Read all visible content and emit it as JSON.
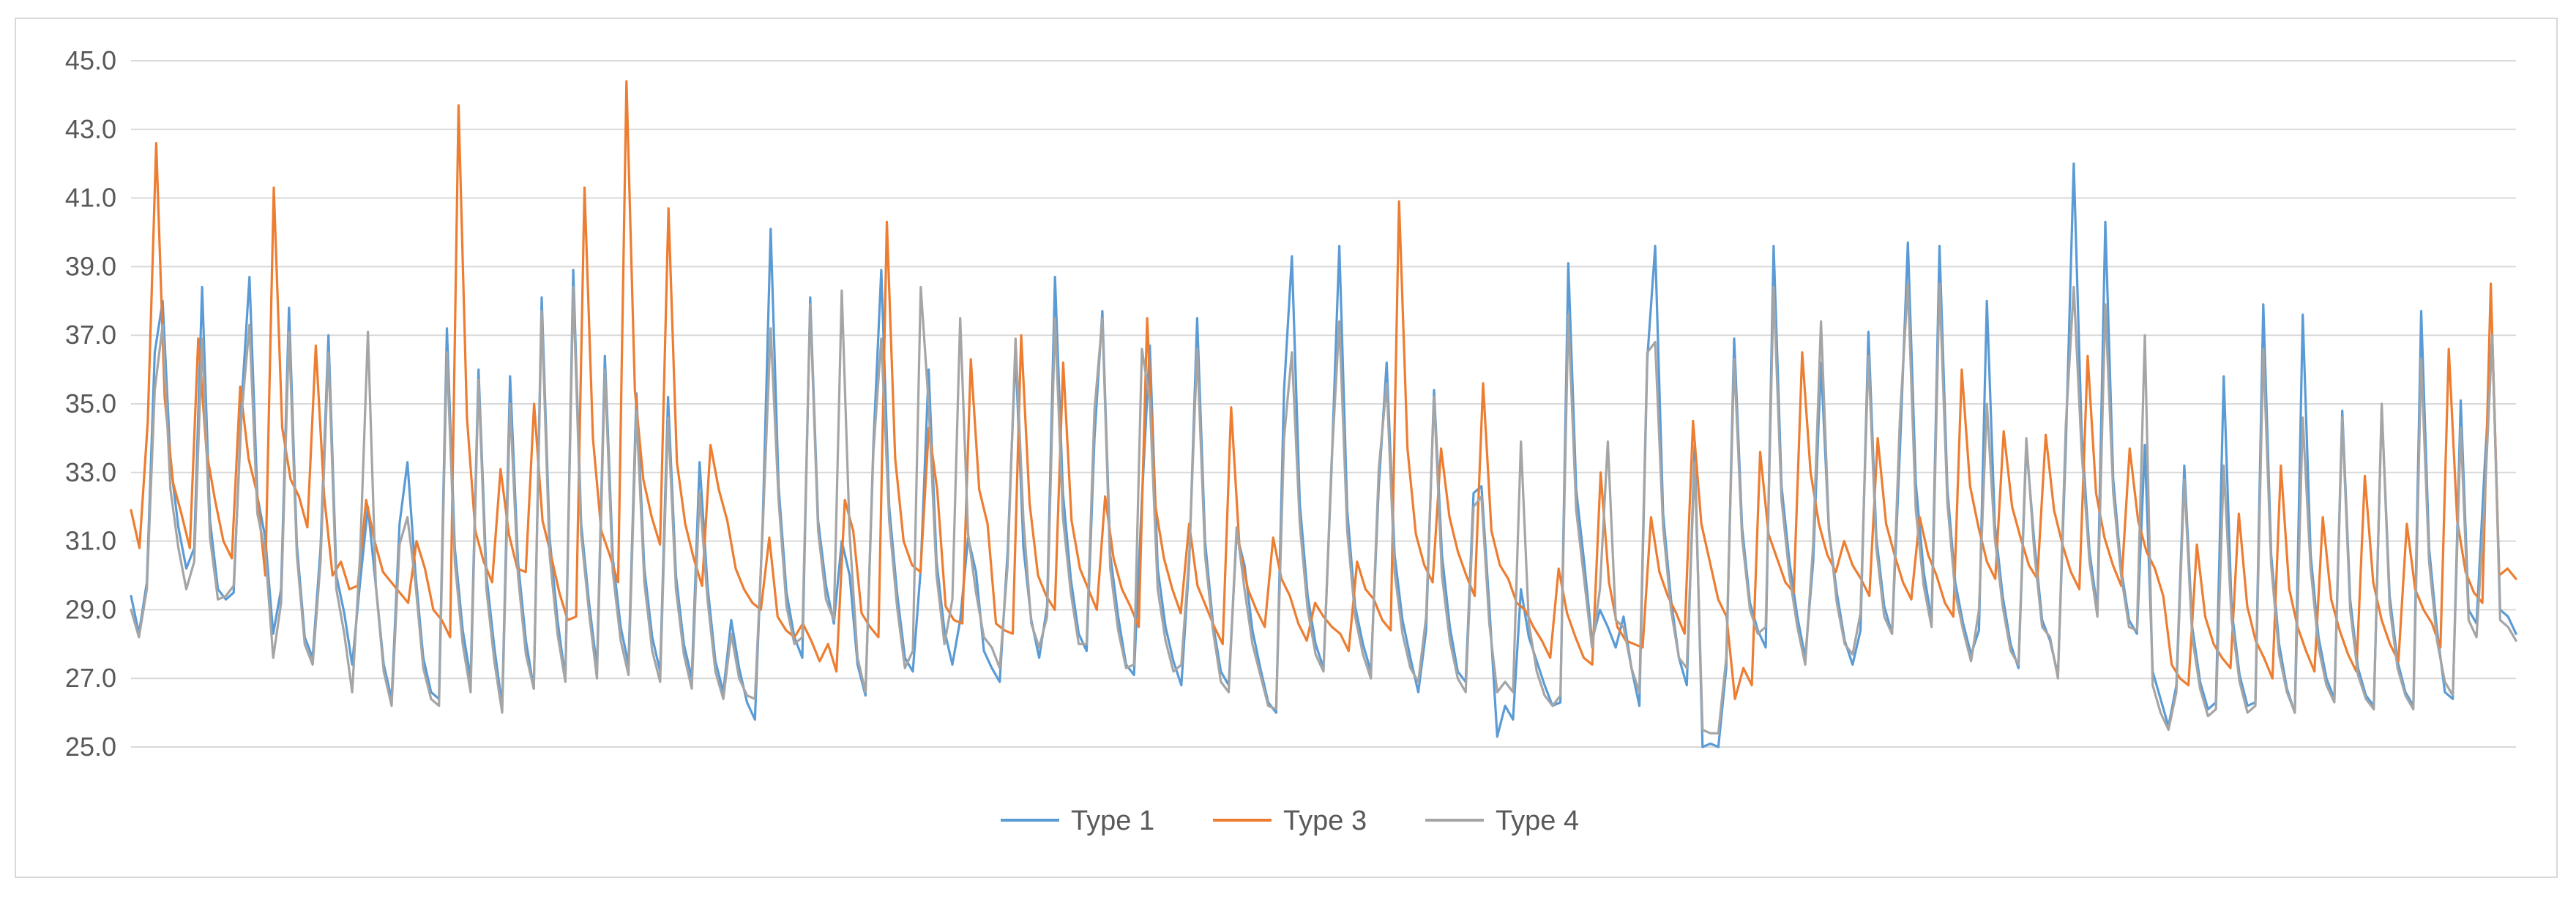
{
  "chart_data": {
    "type": "line",
    "title": "",
    "xlabel": "",
    "ylabel": "",
    "ylim": [
      25,
      45
    ],
    "yticks": [
      "25.0",
      "27.0",
      "29.0",
      "31.0",
      "33.0",
      "35.0",
      "37.0",
      "39.0",
      "41.0",
      "43.0",
      "45.0"
    ],
    "grid": true,
    "legend_position": "bottom",
    "series": [
      {
        "name": "Type 1",
        "color": "#5b9bd5",
        "values": [
          29.4,
          28.3,
          29.8,
          36.5,
          38.0,
          33.3,
          31.4,
          30.2,
          30.8,
          38.4,
          31.6,
          29.6,
          29.3,
          29.5,
          35.0,
          38.7,
          32.3,
          31.1,
          28.3,
          29.6,
          37.8,
          30.9,
          28.2,
          27.6,
          30.8,
          37.0,
          30.0,
          28.9,
          27.4,
          29.8,
          32.0,
          29.7,
          27.4,
          26.4,
          31.5,
          33.3,
          30.1,
          27.6,
          26.6,
          26.4,
          37.2,
          30.8,
          28.4,
          27.0,
          36.0,
          30.0,
          27.9,
          26.2,
          35.8,
          30.4,
          28.1,
          26.7,
          38.1,
          31.1,
          28.7,
          27.0,
          38.9,
          31.5,
          29.2,
          27.3,
          36.4,
          30.5,
          28.5,
          27.4,
          35.3,
          30.2,
          28.2,
          27.2,
          35.2,
          30.0,
          28.0,
          27.0,
          33.3,
          29.7,
          27.5,
          26.6,
          28.7,
          27.3,
          26.3,
          25.8,
          31.6,
          40.1,
          32.6,
          29.5,
          28.2,
          27.6,
          38.1,
          31.6,
          29.7,
          28.6,
          31.0,
          30.0,
          27.4,
          26.5,
          33.8,
          38.9,
          32.0,
          29.5,
          27.6,
          27.2,
          30.2,
          36.0,
          30.4,
          28.4,
          27.4,
          28.7,
          31.1,
          30.1,
          27.8,
          27.3,
          26.9,
          30.7,
          36.5,
          30.8,
          28.7,
          27.6,
          29.1,
          38.7,
          32.4,
          29.9,
          28.3,
          27.8,
          34.0,
          37.7,
          30.6,
          28.8,
          27.4,
          27.1,
          32.2,
          36.7,
          30.2,
          28.5,
          27.5,
          26.8,
          30.4,
          37.5,
          31.0,
          28.6,
          27.2,
          26.8,
          31.2,
          30.3,
          28.4,
          27.3,
          26.3,
          26.0,
          35.4,
          39.3,
          32.1,
          29.4,
          28.0,
          27.3,
          33.0,
          39.6,
          31.9,
          29.1,
          28.0,
          27.2,
          32.6,
          36.2,
          30.6,
          28.7,
          27.6,
          26.6,
          28.4,
          35.4,
          30.6,
          28.5,
          27.2,
          26.9,
          32.4,
          32.6,
          29.1,
          25.3,
          26.2,
          25.8,
          29.6,
          28.2,
          27.5,
          26.8,
          26.2,
          26.3,
          39.1,
          32.5,
          30.4,
          28.1,
          29.0,
          28.5,
          27.9,
          28.8,
          27.3,
          26.2,
          36.3,
          39.6,
          31.8,
          29.3,
          27.6,
          26.8,
          33.8,
          25.0,
          25.1,
          25.0,
          27.3,
          36.9,
          31.4,
          29.2,
          28.4,
          27.9,
          39.6,
          32.6,
          30.4,
          28.8,
          27.6,
          30.4,
          36.2,
          31.3,
          29.5,
          28.1,
          27.4,
          28.4,
          37.1,
          31.1,
          29.1,
          28.3,
          33.7,
          39.7,
          32.7,
          30.1,
          28.7,
          39.6,
          32.5,
          29.8,
          28.6,
          27.7,
          28.4,
          38.0,
          31.5,
          29.4,
          28.0,
          27.3,
          33.8,
          31.0,
          28.7,
          28.1,
          27.1,
          33.8,
          42.0,
          34.1,
          30.7,
          29.0,
          40.3,
          32.8,
          30.2,
          28.7,
          28.3,
          33.8,
          27.2,
          26.4,
          25.6,
          26.8,
          33.2,
          28.5,
          26.9,
          26.1,
          26.3,
          35.8,
          29.0,
          27.1,
          26.2,
          26.3,
          37.9,
          30.6,
          28.0,
          26.7,
          26.0,
          37.6,
          30.6,
          28.2,
          27.0,
          26.4,
          34.8,
          29.3,
          27.3,
          26.5,
          26.2,
          34.9,
          29.4,
          27.5,
          26.6,
          26.2,
          37.7,
          30.8,
          28.4,
          26.6,
          26.4,
          35.1,
          29.0,
          28.6,
          33.0,
          37.0,
          29.0,
          28.8,
          28.3
        ]
      },
      {
        "name": "Type 3",
        "color": "#ed7d31",
        "values": [
          31.9,
          30.8,
          34.5,
          42.6,
          35.2,
          32.7,
          31.8,
          30.8,
          36.9,
          33.6,
          32.2,
          31.0,
          30.5,
          35.5,
          33.4,
          32.4,
          30.0,
          41.3,
          34.3,
          32.8,
          32.3,
          31.4,
          36.7,
          32.3,
          30.0,
          30.4,
          29.6,
          29.7,
          32.2,
          31.0,
          30.1,
          29.8,
          29.5,
          29.2,
          31.0,
          30.2,
          29.0,
          28.7,
          28.2,
          43.7,
          34.6,
          31.3,
          30.4,
          29.8,
          33.1,
          31.2,
          30.2,
          30.1,
          35.0,
          31.6,
          30.6,
          29.5,
          28.7,
          28.8,
          41.3,
          34.0,
          31.3,
          30.6,
          29.8,
          44.4,
          35.4,
          32.8,
          31.7,
          30.9,
          40.7,
          33.3,
          31.5,
          30.5,
          29.7,
          33.8,
          32.5,
          31.6,
          30.2,
          29.6,
          29.2,
          29.0,
          31.1,
          28.8,
          28.4,
          28.2,
          28.6,
          28.1,
          27.5,
          28.0,
          27.2,
          32.2,
          31.3,
          28.9,
          28.5,
          28.2,
          40.3,
          33.4,
          31.0,
          30.3,
          30.1,
          34.3,
          32.5,
          29.1,
          28.7,
          28.6,
          36.3,
          32.5,
          31.5,
          28.6,
          28.4,
          28.3,
          37.0,
          32.1,
          30.0,
          29.4,
          29.0,
          36.2,
          31.6,
          30.2,
          29.6,
          29.0,
          32.3,
          30.5,
          29.6,
          29.1,
          28.5,
          37.5,
          32.0,
          30.5,
          29.6,
          28.9,
          31.5,
          29.7,
          29.1,
          28.5,
          28.0,
          34.9,
          30.8,
          29.6,
          29.0,
          28.5,
          31.1,
          29.9,
          29.4,
          28.6,
          28.1,
          29.2,
          28.8,
          28.5,
          28.3,
          27.8,
          30.4,
          29.6,
          29.3,
          28.7,
          28.4,
          40.9,
          33.7,
          31.2,
          30.3,
          29.8,
          33.7,
          31.7,
          30.7,
          30.0,
          29.4,
          35.6,
          31.3,
          30.3,
          29.9,
          29.2,
          29.0,
          28.5,
          28.1,
          27.6,
          30.2,
          28.9,
          28.2,
          27.6,
          27.4,
          33.0,
          29.8,
          28.5,
          28.1,
          28.0,
          27.9,
          31.7,
          30.1,
          29.4,
          28.9,
          28.3,
          34.5,
          31.5,
          30.4,
          29.3,
          28.8,
          26.4,
          27.3,
          26.8,
          33.6,
          31.2,
          30.5,
          29.8,
          29.5,
          36.5,
          33.0,
          31.5,
          30.6,
          30.1,
          31.0,
          30.3,
          29.9,
          29.4,
          34.0,
          31.5,
          30.6,
          29.8,
          29.3,
          31.7,
          30.6,
          30.0,
          29.2,
          28.8,
          36.0,
          32.6,
          31.4,
          30.4,
          29.9,
          34.2,
          32.0,
          31.1,
          30.3,
          29.9,
          34.1,
          31.9,
          30.9,
          30.1,
          29.6,
          36.4,
          32.4,
          31.1,
          30.3,
          29.7,
          33.7,
          31.6,
          30.7,
          30.2,
          29.4,
          27.4,
          27.0,
          26.8,
          30.9,
          28.8,
          28.0,
          27.6,
          27.3,
          31.8,
          29.1,
          28.1,
          27.6,
          27.0,
          33.2,
          29.6,
          28.5,
          27.8,
          27.2,
          31.7,
          29.3,
          28.4,
          27.7,
          27.2,
          32.9,
          29.8,
          28.7,
          28.0,
          27.5,
          31.5,
          29.6,
          29.0,
          28.6,
          27.9,
          36.6,
          31.6,
          30.1,
          29.5,
          29.2,
          38.5,
          30.0,
          30.2,
          29.9
        ]
      },
      {
        "name": "Type 4",
        "color": "#a5a5a5",
        "values": [
          29.0,
          28.2,
          29.6,
          35.4,
          37.3,
          32.5,
          30.8,
          29.6,
          30.4,
          36.9,
          31.1,
          29.3,
          29.4,
          29.7,
          34.7,
          37.3,
          31.8,
          30.7,
          27.6,
          29.2,
          37.1,
          30.6,
          28.0,
          27.4,
          30.4,
          36.5,
          29.6,
          28.3,
          26.6,
          30.6,
          37.1,
          29.7,
          27.2,
          26.2,
          30.9,
          31.7,
          29.8,
          27.3,
          26.4,
          26.2,
          36.5,
          30.4,
          28.0,
          26.6,
          35.7,
          29.6,
          27.5,
          26.0,
          35.0,
          30.0,
          27.7,
          26.7,
          37.7,
          30.6,
          28.3,
          26.9,
          38.4,
          31.2,
          28.9,
          27.0,
          36.0,
          30.1,
          28.1,
          27.1,
          34.8,
          29.8,
          27.8,
          26.9,
          34.6,
          29.6,
          27.7,
          26.7,
          32.4,
          29.3,
          27.2,
          26.4,
          28.3,
          27.0,
          26.5,
          26.4,
          31.4,
          37.2,
          32.2,
          29.1,
          28.0,
          28.2,
          37.9,
          31.3,
          29.3,
          28.7,
          38.3,
          31.2,
          27.6,
          26.6,
          33.6,
          36.9,
          31.6,
          29.1,
          27.3,
          27.8,
          38.4,
          35.0,
          30.0,
          28.0,
          29.3,
          37.5,
          31.2,
          29.5,
          28.2,
          27.9,
          27.3,
          30.3,
          36.9,
          31.6,
          28.6,
          27.9,
          28.8,
          37.5,
          31.7,
          29.5,
          28.0,
          28.0,
          34.8,
          37.5,
          30.2,
          28.4,
          27.3,
          27.4,
          36.6,
          35.1,
          29.6,
          28.1,
          27.2,
          27.4,
          30.6,
          36.6,
          30.6,
          28.4,
          26.9,
          26.6,
          31.4,
          29.6,
          28.0,
          27.1,
          26.2,
          26.1,
          34.0,
          36.5,
          31.5,
          29.0,
          27.7,
          27.2,
          33.2,
          37.4,
          31.3,
          28.8,
          27.7,
          27.0,
          33.1,
          35.6,
          30.1,
          28.3,
          27.3,
          26.9,
          28.8,
          35.2,
          30.0,
          28.1,
          27.0,
          26.6,
          32.0,
          32.3,
          28.6,
          26.6,
          26.9,
          26.6,
          33.9,
          28.6,
          27.2,
          26.5,
          26.2,
          26.5,
          37.6,
          31.9,
          29.9,
          27.9,
          29.6,
          33.9,
          28.7,
          28.5,
          27.3,
          26.6,
          36.5,
          36.8,
          31.4,
          29.0,
          27.6,
          27.3,
          33.3,
          25.5,
          25.4,
          25.4,
          27.6,
          36.3,
          31.1,
          29.0,
          28.3,
          28.5,
          38.4,
          32.2,
          30.0,
          28.5,
          27.4,
          30.9,
          37.4,
          31.4,
          29.2,
          28.0,
          27.7,
          28.9,
          36.4,
          30.8,
          28.8,
          28.3,
          34.6,
          38.5,
          31.9,
          29.7,
          28.5,
          38.5,
          32.1,
          29.5,
          28.4,
          27.5,
          29.0,
          35.0,
          31.1,
          29.1,
          27.8,
          27.4,
          34.0,
          30.7,
          28.5,
          28.2,
          27.0,
          34.4,
          38.4,
          33.6,
          30.4,
          28.8,
          37.9,
          32.4,
          30.0,
          28.5,
          28.4,
          37.0,
          26.8,
          26.0,
          25.5,
          26.6,
          32.8,
          28.2,
          26.7,
          25.9,
          26.1,
          33.2,
          28.7,
          26.9,
          26.0,
          26.2,
          36.6,
          30.3,
          27.7,
          26.6,
          26.0,
          34.6,
          30.2,
          27.9,
          26.8,
          26.3,
          34.6,
          29.0,
          27.1,
          26.4,
          26.1,
          35.0,
          29.1,
          27.3,
          26.5,
          26.1,
          36.3,
          30.4,
          28.1,
          26.9,
          26.5,
          34.3,
          28.7,
          28.2,
          32.0,
          37.0,
          28.7,
          28.5,
          28.1
        ]
      }
    ]
  }
}
